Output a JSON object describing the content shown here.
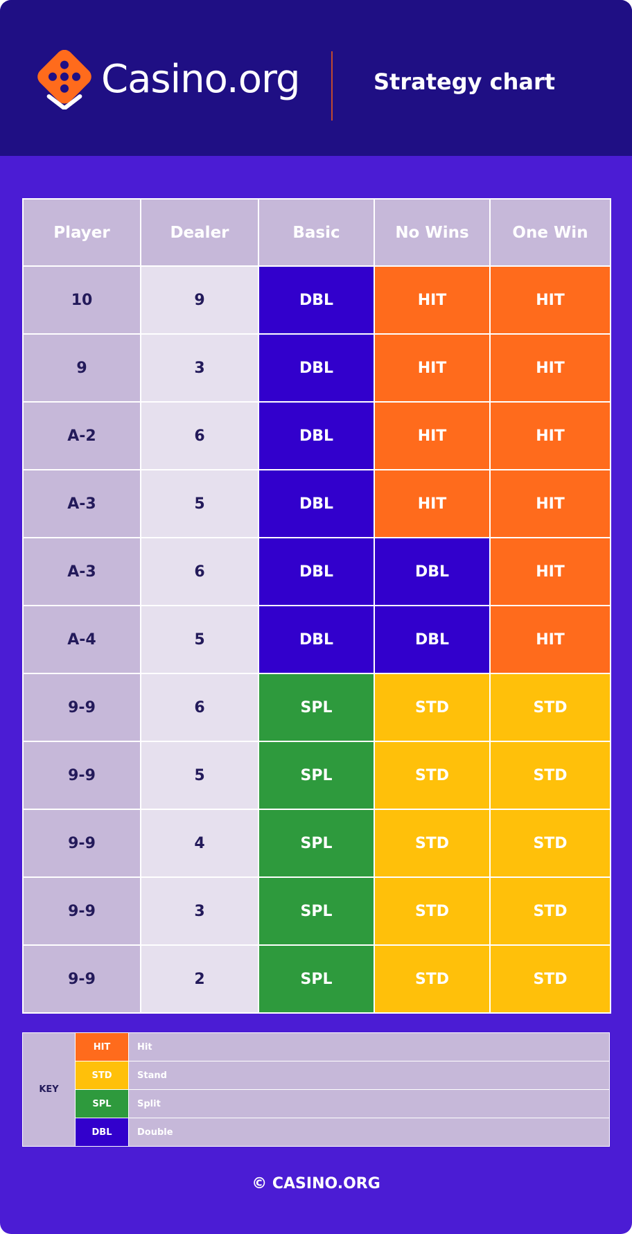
{
  "header": {
    "brand": "Casino.org",
    "subtitle": "Strategy chart",
    "logo_icon": "dice-logo-icon",
    "accent_color": "#ff6b1c"
  },
  "table": {
    "columns": [
      "Player",
      "Dealer",
      "Basic",
      "No Wins",
      "One Win"
    ],
    "rows": [
      {
        "player": "10",
        "dealer": "9",
        "basic": "DBL",
        "no_wins": "HIT",
        "one_win": "HIT"
      },
      {
        "player": "9",
        "dealer": "3",
        "basic": "DBL",
        "no_wins": "HIT",
        "one_win": "HIT"
      },
      {
        "player": "A-2",
        "dealer": "6",
        "basic": "DBL",
        "no_wins": "HIT",
        "one_win": "HIT"
      },
      {
        "player": "A-3",
        "dealer": "5",
        "basic": "DBL",
        "no_wins": "HIT",
        "one_win": "HIT"
      },
      {
        "player": "A-3",
        "dealer": "6",
        "basic": "DBL",
        "no_wins": "DBL",
        "one_win": "HIT"
      },
      {
        "player": "A-4",
        "dealer": "5",
        "basic": "DBL",
        "no_wins": "DBL",
        "one_win": "HIT"
      },
      {
        "player": "9-9",
        "dealer": "6",
        "basic": "SPL",
        "no_wins": "STD",
        "one_win": "STD"
      },
      {
        "player": "9-9",
        "dealer": "5",
        "basic": "SPL",
        "no_wins": "STD",
        "one_win": "STD"
      },
      {
        "player": "9-9",
        "dealer": "4",
        "basic": "SPL",
        "no_wins": "STD",
        "one_win": "STD"
      },
      {
        "player": "9-9",
        "dealer": "3",
        "basic": "SPL",
        "no_wins": "STD",
        "one_win": "STD"
      },
      {
        "player": "9-9",
        "dealer": "2",
        "basic": "SPL",
        "no_wins": "STD",
        "one_win": "STD"
      }
    ]
  },
  "key": {
    "label": "KEY",
    "items": [
      {
        "code": "HIT",
        "desc": "Hit",
        "color": "#ff6b1c"
      },
      {
        "code": "STD",
        "desc": "Stand",
        "color": "#ffc00a"
      },
      {
        "code": "SPL",
        "desc": "Split",
        "color": "#2e9a3d"
      },
      {
        "code": "DBL",
        "desc": "Double",
        "color": "#3200cc"
      }
    ]
  },
  "footer": {
    "copyright": "© CASINO.ORG"
  }
}
